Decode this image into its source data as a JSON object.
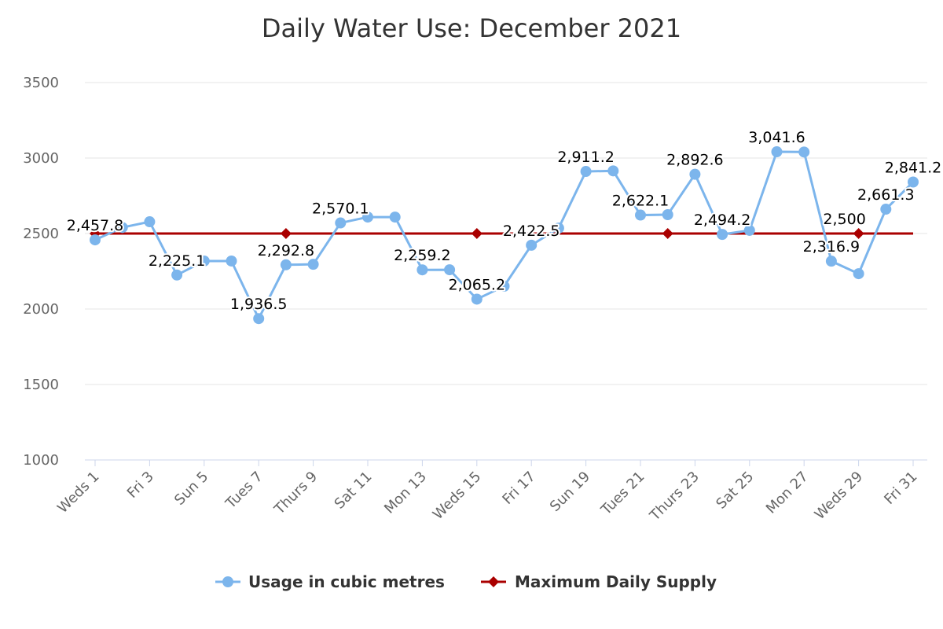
{
  "chart_data": {
    "type": "line",
    "title": "Daily Water Use: December 2021",
    "xlabel": "",
    "ylabel": "",
    "ylim": [
      1000,
      3500
    ],
    "yticks": [
      1000,
      1500,
      2000,
      2500,
      3000,
      3500
    ],
    "grid": true,
    "legend_position": "bottom",
    "categories": [
      "Weds 1",
      "Thurs 2",
      "Fri 3",
      "Sat 4",
      "Sun 5",
      "Mon 6",
      "Tues 7",
      "Weds 8",
      "Thurs 9",
      "Fri 10",
      "Sat 11",
      "Sun 12",
      "Mon 13",
      "Tues 14",
      "Weds 15",
      "Thurs 16",
      "Fri 17",
      "Sat 18",
      "Sun 19",
      "Mon 20",
      "Tues 21",
      "Weds 22",
      "Thurs 23",
      "Fri 24",
      "Sat 25",
      "Sun 26",
      "Mon 27",
      "Tues 28",
      "Weds 29",
      "Thurs 30",
      "Fri 31"
    ],
    "xtick_labels": [
      "Weds 1",
      "Fri 3",
      "Sun 5",
      "Tues 7",
      "Thurs 9",
      "Sat 11",
      "Mon 13",
      "Weds 15",
      "Fri 17",
      "Sun 19",
      "Tues 21",
      "Thurs 23",
      "Sat 25",
      "Mon 27",
      "Weds 29",
      "Fri 31"
    ],
    "series": [
      {
        "name": "Usage in cubic metres",
        "color": "#7cb5ec",
        "values": [
          2457.8,
          2540,
          2578,
          2225.1,
          2318,
          2318,
          1936.5,
          2292.8,
          2296,
          2570.1,
          2609,
          2609,
          2259.2,
          2260,
          2065.2,
          2151,
          2422.5,
          2536,
          2911.2,
          2915,
          2622.1,
          2625,
          2892.6,
          2494.2,
          2521,
          3041.6,
          3040,
          2316.9,
          2234,
          2661.3,
          2841.2
        ],
        "labels": [
          "2,457.8",
          null,
          null,
          "2,225.1",
          null,
          null,
          "1,936.5",
          "2,292.8",
          null,
          "2,570.1",
          null,
          null,
          "2,259.2",
          null,
          "2,065.2",
          null,
          "2,422.5",
          null,
          "2,911.2",
          null,
          "2,622.1",
          null,
          "2,892.6",
          "2,494.2",
          null,
          "3,041.6",
          null,
          "2,316.9",
          null,
          "2,661.3",
          "2,841.2"
        ]
      },
      {
        "name": "Maximum Daily Supply",
        "color": "#aa0000",
        "values": [
          2500,
          2500,
          2500,
          2500,
          2500,
          2500,
          2500,
          2500,
          2500,
          2500,
          2500,
          2500,
          2500,
          2500,
          2500,
          2500,
          2500,
          2500,
          2500,
          2500,
          2500,
          2500,
          2500,
          2500,
          2500,
          2500,
          2500,
          2500,
          2500,
          2500,
          2500
        ],
        "marker_days": [
          "Weds 1",
          "Weds 8",
          "Weds 15",
          "Weds 22",
          "Weds 29"
        ],
        "labels": {
          "Weds 29": "2,500"
        }
      }
    ]
  }
}
